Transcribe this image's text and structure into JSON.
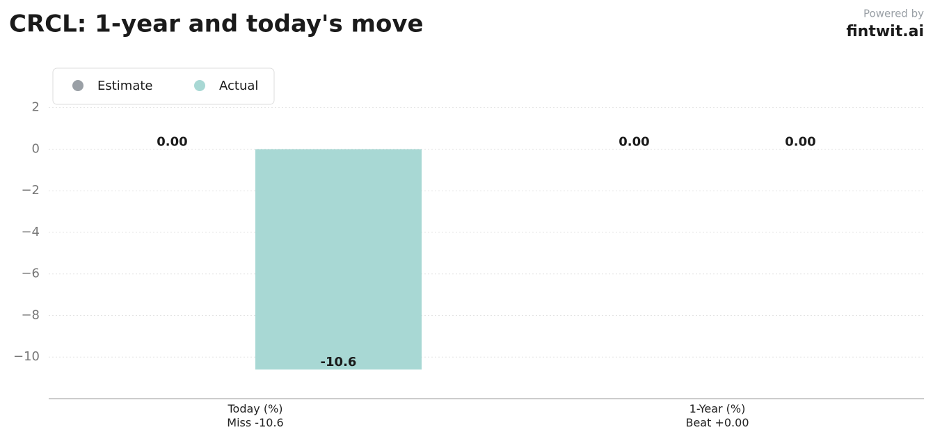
{
  "chart_data": {
    "type": "bar",
    "title": "CRCL: 1-year and today's move",
    "brand_caption": "Powered by",
    "brand": "fintwit.ai",
    "categories": [
      "Today (%)\nMiss -10.6",
      "1-Year (%)\nBeat +0.00"
    ],
    "series": [
      {
        "name": "Estimate",
        "color": "#9aa0a6",
        "values": [
          0,
          0
        ],
        "value_labels": [
          "0.00",
          "0.00"
        ]
      },
      {
        "name": "Actual",
        "color": "#a8d8d4",
        "values": [
          -10.6,
          0
        ],
        "value_labels": [
          "-10.6",
          "0.00"
        ]
      }
    ],
    "ylim": [
      -12,
      3.9
    ],
    "yticks": [
      {
        "value": -10,
        "label": "−10"
      },
      {
        "value": -8,
        "label": "−8"
      },
      {
        "value": -6,
        "label": "−6"
      },
      {
        "value": -4,
        "label": "−4"
      },
      {
        "value": -2,
        "label": "−2"
      },
      0,
      2
    ],
    "grid": true,
    "legend": "top-left"
  }
}
